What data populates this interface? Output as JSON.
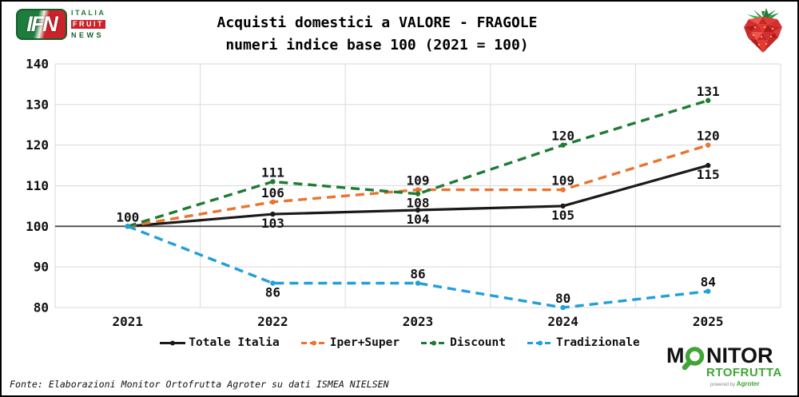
{
  "header": {
    "ifn_logo": {
      "abbr": "IFN",
      "line1": "ITALIA",
      "line2": "FRUIT",
      "line3": "NEWS"
    }
  },
  "icons": {
    "strawberry": "strawberry-icon",
    "magnifier": "magnifier-icon"
  },
  "chart_data": {
    "type": "line",
    "title": "Acquisti domestici a VALORE - FRAGOLE",
    "subtitle": "numeri indice base 100 (2021 = 100)",
    "categories": [
      "2021",
      "2022",
      "2023",
      "2024",
      "2025"
    ],
    "ylim": [
      80,
      140
    ],
    "ytick_step": 10,
    "yticks": [
      80,
      90,
      100,
      110,
      120,
      130,
      140
    ],
    "grid": true,
    "baseline_value": 100,
    "legend_position": "bottom",
    "series": [
      {
        "name": "Totale Italia",
        "color": "#1a1a1a",
        "style": "solid",
        "values": [
          100,
          103,
          104,
          105,
          115
        ],
        "labels": [
          "100",
          "103",
          "104",
          "105",
          "115"
        ],
        "label_pos": [
          "above",
          "below",
          "below",
          "below",
          "below"
        ]
      },
      {
        "name": "Iper+Super",
        "color": "#e8752e",
        "style": "dashed",
        "values": [
          100,
          106,
          109,
          109,
          120
        ],
        "labels": [
          null,
          "106",
          "109",
          "109",
          "120"
        ],
        "label_pos": [
          null,
          "above",
          "above",
          "above",
          "above"
        ]
      },
      {
        "name": "Discount",
        "color": "#1e7b34",
        "style": "dashed",
        "values": [
          100,
          111,
          108,
          120,
          131
        ],
        "labels": [
          null,
          "111",
          "108",
          "120",
          "131"
        ],
        "label_pos": [
          null,
          "above",
          "below",
          "above",
          "above"
        ]
      },
      {
        "name": "Tradizionale",
        "color": "#219fd9",
        "style": "dashed",
        "values": [
          100,
          86,
          86,
          80,
          84
        ],
        "labels": [
          null,
          "86",
          "86",
          "80",
          "84"
        ],
        "label_pos": [
          null,
          "below",
          "above",
          "above",
          "above"
        ]
      }
    ]
  },
  "footer": {
    "source": "Fonte: Elaborazioni Monitor Ortofrutta Agroter su dati ISMEA NIELSEN",
    "monitor_logo": {
      "m": "M",
      "nitor": "NITOR",
      "rtofrutta": "RTOFRUTTA",
      "powered_by": "powered by",
      "brand": "Agroter"
    }
  },
  "colors": {
    "ifn_green": "#1e7c3c",
    "ifn_red": "#cc2229",
    "monitor_green": "#3fa535",
    "grid": "#d9d9d9",
    "baseline_line": "#4a4a4a",
    "text": "#111111"
  }
}
